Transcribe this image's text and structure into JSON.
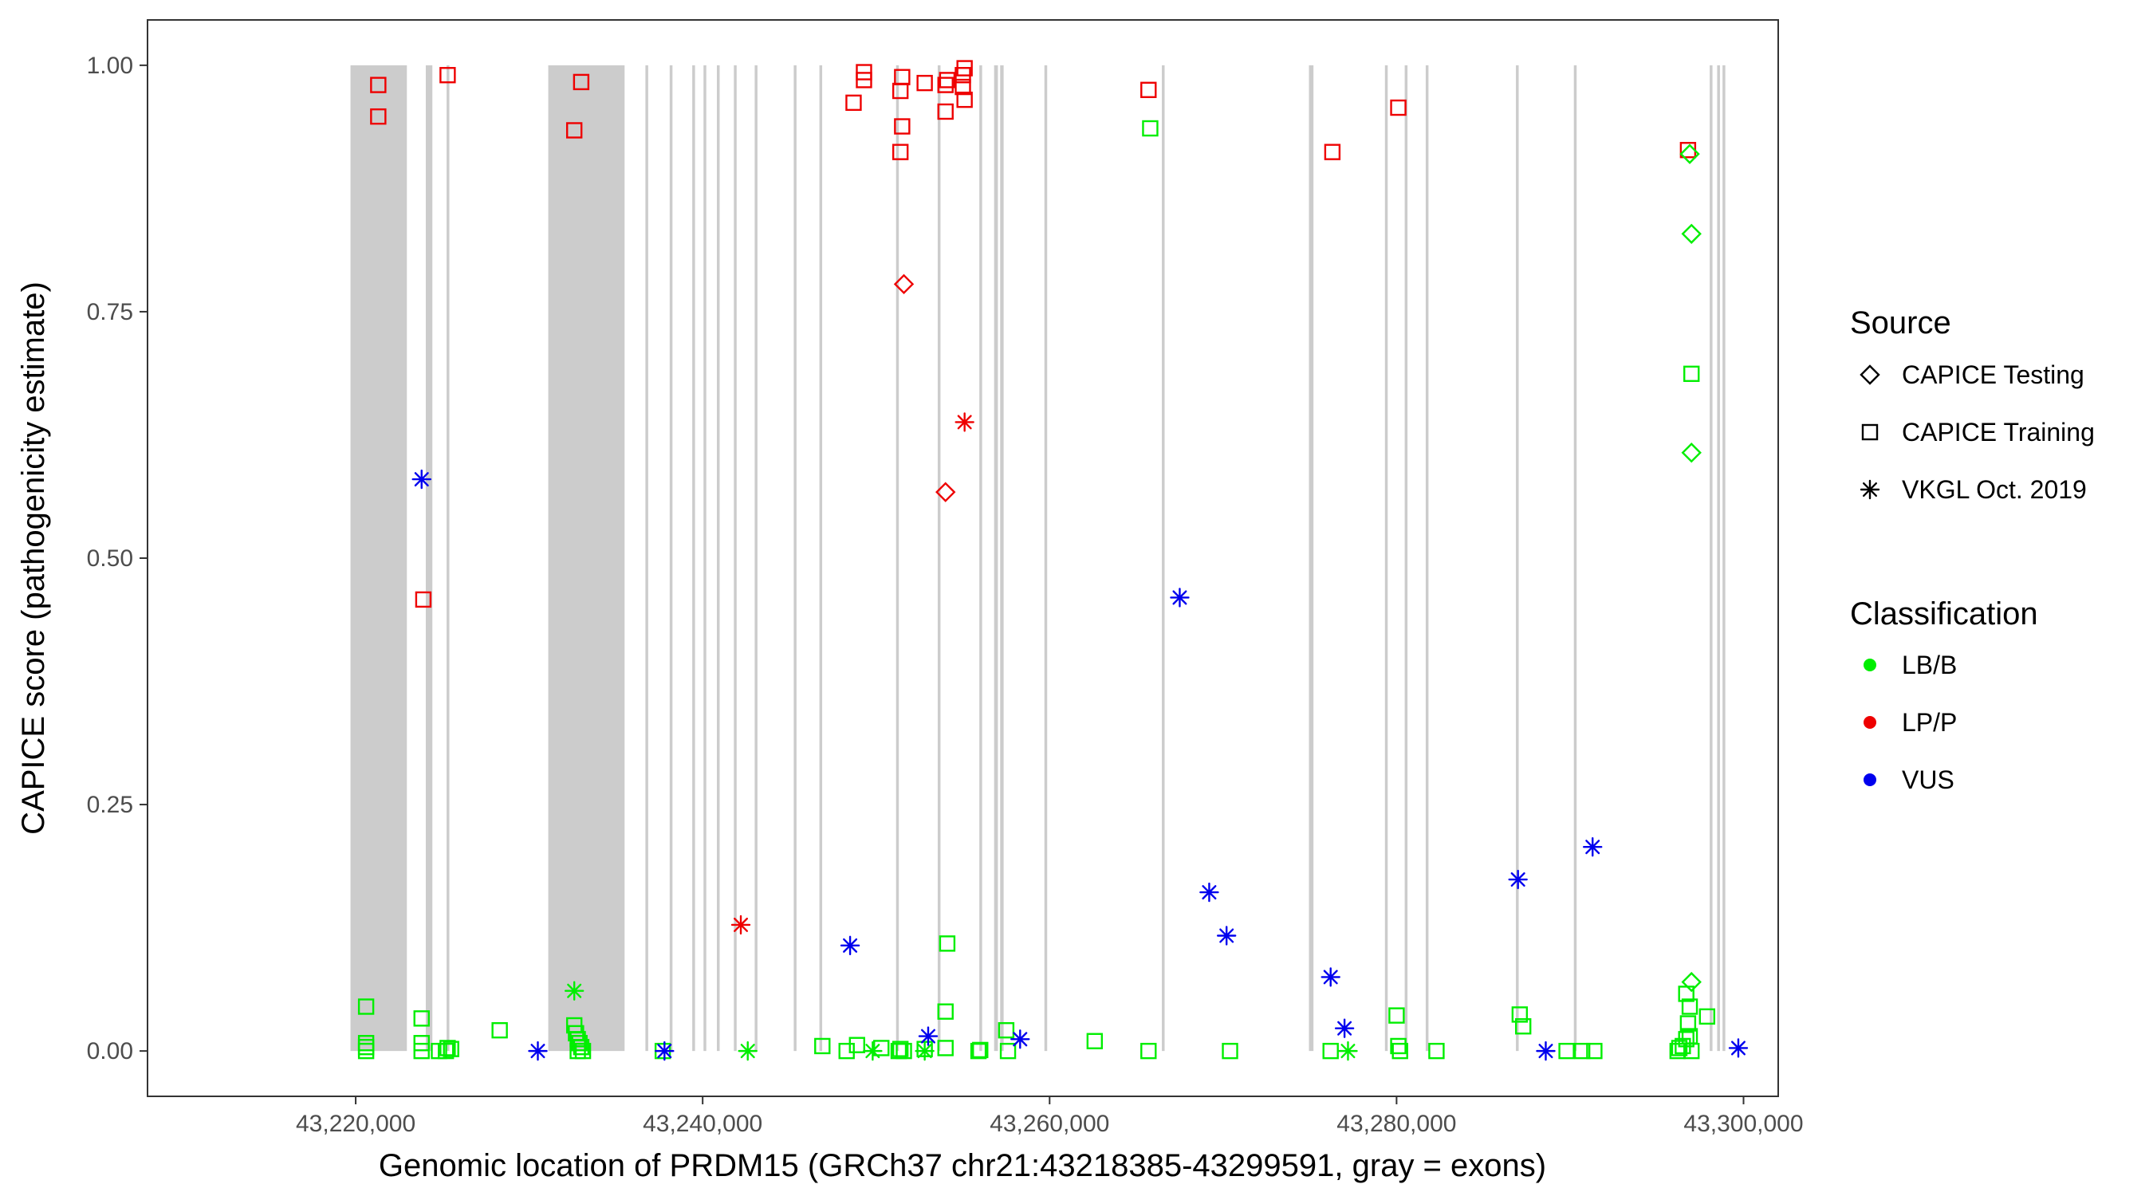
{
  "chart_data": {
    "type": "scatter",
    "xlabel": "Genomic location of PRDM15 (GRCh37 chr21:43218385-43299591, gray = exons)",
    "ylabel": "CAPICE score (pathogenicity estimate)",
    "xlim": [
      43208000,
      43302000
    ],
    "ylim": [
      -0.046,
      1.046
    ],
    "x_ticks": [
      43220000,
      43240000,
      43260000,
      43280000,
      43300000
    ],
    "x_tick_labels": [
      "43,220,000",
      "43,240,000",
      "43,260,000",
      "43,280,000",
      "43,300,000"
    ],
    "y_ticks": [
      0,
      0.25,
      0.5,
      0.75,
      1.0
    ],
    "y_tick_labels": [
      "0.00",
      "0.25",
      "0.50",
      "0.75",
      "1.00"
    ],
    "grid": false,
    "legend_position": "right",
    "exons": [
      [
        43219700,
        43222950
      ],
      [
        43224040,
        43224420
      ],
      [
        43225240,
        43225400
      ],
      [
        43231100,
        43235500
      ],
      [
        43236700,
        43236860
      ],
      [
        43238100,
        43238260
      ],
      [
        43239400,
        43239560
      ],
      [
        43240050,
        43240210
      ],
      [
        43240820,
        43240980
      ],
      [
        43241800,
        43241960
      ],
      [
        43243000,
        43243160
      ],
      [
        43245250,
        43245410
      ],
      [
        43246730,
        43246890
      ],
      [
        43251150,
        43251310
      ],
      [
        43253550,
        43253710
      ],
      [
        43255950,
        43256110
      ],
      [
        43256800,
        43257020
      ],
      [
        43257150,
        43257350
      ],
      [
        43259700,
        43259860
      ],
      [
        43266470,
        43266630
      ],
      [
        43274950,
        43275210
      ],
      [
        43279330,
        43279490
      ],
      [
        43280470,
        43280630
      ],
      [
        43281680,
        43281840
      ],
      [
        43286880,
        43287040
      ],
      [
        43290220,
        43290380
      ],
      [
        43298050,
        43298210
      ],
      [
        43298480,
        43298640
      ],
      [
        43298790,
        43298950
      ]
    ],
    "legend": {
      "source_title": "Source",
      "source_items": [
        {
          "label": "CAPICE Testing",
          "shape": "diamond"
        },
        {
          "label": "CAPICE Training",
          "shape": "square"
        },
        {
          "label": "VKGL Oct. 2019",
          "shape": "asterisk"
        }
      ],
      "class_title": "Classification",
      "class_items": [
        {
          "label": "LB/B",
          "color": "#00ee00"
        },
        {
          "label": "LP/P",
          "color": "#ee0000"
        },
        {
          "label": "VUS",
          "color": "#0000ee"
        }
      ]
    },
    "series": [
      {
        "source": "CAPICE Training",
        "classification": "LP/P",
        "shape": "square",
        "color": "#ee0000",
        "points": [
          [
            43221300,
            0.98
          ],
          [
            43221300,
            0.948
          ],
          [
            43225300,
            0.99
          ],
          [
            43233000,
            0.983
          ],
          [
            43232600,
            0.934
          ],
          [
            43223900,
            0.458
          ],
          [
            43248700,
            0.962
          ],
          [
            43249300,
            0.985
          ],
          [
            43249300,
            0.993
          ],
          [
            43251500,
            0.988
          ],
          [
            43251400,
            0.974
          ],
          [
            43251500,
            0.938
          ],
          [
            43251400,
            0.912
          ],
          [
            43252800,
            0.982
          ],
          [
            43254000,
            0.98
          ],
          [
            43254100,
            0.985
          ],
          [
            43254000,
            0.953
          ],
          [
            43255100,
            0.997
          ],
          [
            43255000,
            0.99
          ],
          [
            43255000,
            0.978
          ],
          [
            43255100,
            0.965
          ],
          [
            43265700,
            0.975
          ],
          [
            43276300,
            0.912
          ],
          [
            43280100,
            0.957
          ],
          [
            43296800,
            0.914
          ]
        ]
      },
      {
        "source": "CAPICE Testing",
        "classification": "LP/P",
        "shape": "diamond",
        "color": "#ee0000",
        "points": [
          [
            43251600,
            0.778
          ],
          [
            43254000,
            0.567
          ]
        ]
      },
      {
        "source": "VKGL Oct. 2019",
        "classification": "LP/P",
        "shape": "asterisk",
        "color": "#ee0000",
        "points": [
          [
            43255100,
            0.638
          ],
          [
            43242200,
            0.128
          ]
        ]
      },
      {
        "source": "CAPICE Training",
        "classification": "LB/B",
        "shape": "square",
        "color": "#00ee00",
        "points": [
          [
            43220600,
            0.045
          ],
          [
            43220600,
            0.008
          ],
          [
            43220600,
            0.004
          ],
          [
            43220600,
            0.0
          ],
          [
            43223800,
            0.033
          ],
          [
            43223800,
            0.008
          ],
          [
            43223800,
            0.0
          ],
          [
            43224800,
            0.0
          ],
          [
            43225300,
            0.003
          ],
          [
            43225500,
            0.002
          ],
          [
            43225200,
            0.0
          ],
          [
            43228300,
            0.021
          ],
          [
            43232600,
            0.026
          ],
          [
            43232700,
            0.018
          ],
          [
            43232800,
            0.012
          ],
          [
            43232900,
            0.008
          ],
          [
            43233000,
            0.004
          ],
          [
            43232800,
            0.0
          ],
          [
            43233100,
            0.0
          ],
          [
            43237700,
            0.0
          ],
          [
            43246900,
            0.005
          ],
          [
            43248300,
            0.0
          ],
          [
            43248900,
            0.006
          ],
          [
            43250300,
            0.003
          ],
          [
            43251400,
            0.002
          ],
          [
            43251600,
            0.0
          ],
          [
            43251300,
            0.0
          ],
          [
            43252800,
            0.002
          ],
          [
            43254000,
            0.003
          ],
          [
            43254000,
            0.04
          ],
          [
            43254100,
            0.109
          ],
          [
            43255900,
            0.0
          ],
          [
            43256000,
            0.001
          ],
          [
            43257500,
            0.021
          ],
          [
            43257600,
            0.0
          ],
          [
            43262600,
            0.01
          ],
          [
            43265700,
            0.0
          ],
          [
            43265800,
            0.936
          ],
          [
            43270400,
            0.0
          ],
          [
            43276200,
            0.0
          ],
          [
            43280000,
            0.036
          ],
          [
            43280100,
            0.005
          ],
          [
            43280200,
            0.0
          ],
          [
            43282300,
            0.0
          ],
          [
            43287100,
            0.037
          ],
          [
            43287300,
            0.025
          ],
          [
            43289800,
            0.0
          ],
          [
            43290700,
            0.0
          ],
          [
            43291400,
            0.0
          ],
          [
            43296200,
            0.0
          ],
          [
            43296300,
            0.003
          ],
          [
            43296500,
            0.005
          ],
          [
            43296700,
            0.012
          ],
          [
            43296800,
            0.028
          ],
          [
            43296900,
            0.045
          ],
          [
            43296700,
            0.058
          ],
          [
            43296900,
            0.015
          ],
          [
            43297000,
            0.0
          ],
          [
            43297000,
            0.687
          ],
          [
            43297900,
            0.035
          ]
        ]
      },
      {
        "source": "CAPICE Testing",
        "classification": "LB/B",
        "shape": "diamond",
        "color": "#00ee00",
        "points": [
          [
            43296900,
            0.91
          ],
          [
            43297000,
            0.829
          ],
          [
            43297000,
            0.607
          ],
          [
            43297000,
            0.07
          ]
        ]
      },
      {
        "source": "VKGL Oct. 2019",
        "classification": "LB/B",
        "shape": "asterisk",
        "color": "#00ee00",
        "points": [
          [
            43232600,
            0.061
          ],
          [
            43242600,
            0.0
          ],
          [
            43249800,
            0.0
          ],
          [
            43252800,
            0.0
          ],
          [
            43277200,
            0.0
          ]
        ]
      },
      {
        "source": "VKGL Oct. 2019",
        "classification": "VUS",
        "shape": "asterisk",
        "color": "#0000ee",
        "points": [
          [
            43223800,
            0.58
          ],
          [
            43230500,
            0.0
          ],
          [
            43237800,
            0.0
          ],
          [
            43248500,
            0.107
          ],
          [
            43253000,
            0.015
          ],
          [
            43258300,
            0.012
          ],
          [
            43267500,
            0.46
          ],
          [
            43269200,
            0.161
          ],
          [
            43270200,
            0.117
          ],
          [
            43276200,
            0.075
          ],
          [
            43277000,
            0.023
          ],
          [
            43287000,
            0.174
          ],
          [
            43288600,
            0.0
          ],
          [
            43291300,
            0.207
          ],
          [
            43299700,
            0.003
          ]
        ]
      }
    ]
  }
}
